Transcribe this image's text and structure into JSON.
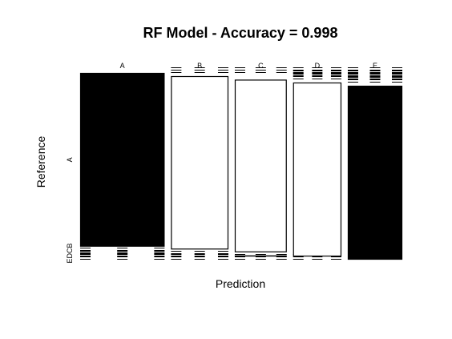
{
  "chart_data": {
    "type": "mosaic",
    "title": "RF Model - Accuracy = 0.998",
    "xlabel": "Prediction",
    "ylabel": "Reference",
    "columns": [
      "A",
      "B",
      "C",
      "D",
      "E"
    ],
    "rows": [
      "A",
      "B",
      "C",
      "D",
      "E"
    ],
    "row_tick_labels": [
      "A",
      "EDCB"
    ],
    "counts": [
      [
        1674,
        0,
        0,
        0,
        0
      ],
      [
        2,
        1135,
        2,
        0,
        0
      ],
      [
        0,
        4,
        1022,
        0,
        0
      ],
      [
        0,
        0,
        6,
        958,
        0
      ],
      [
        0,
        0,
        0,
        0,
        1082
      ]
    ],
    "fill_black": [
      [
        true,
        false,
        false,
        false,
        false
      ],
      [
        false,
        false,
        false,
        false,
        false
      ],
      [
        false,
        false,
        false,
        false,
        false
      ],
      [
        false,
        false,
        false,
        false,
        false
      ],
      [
        false,
        false,
        false,
        false,
        true
      ]
    ]
  }
}
